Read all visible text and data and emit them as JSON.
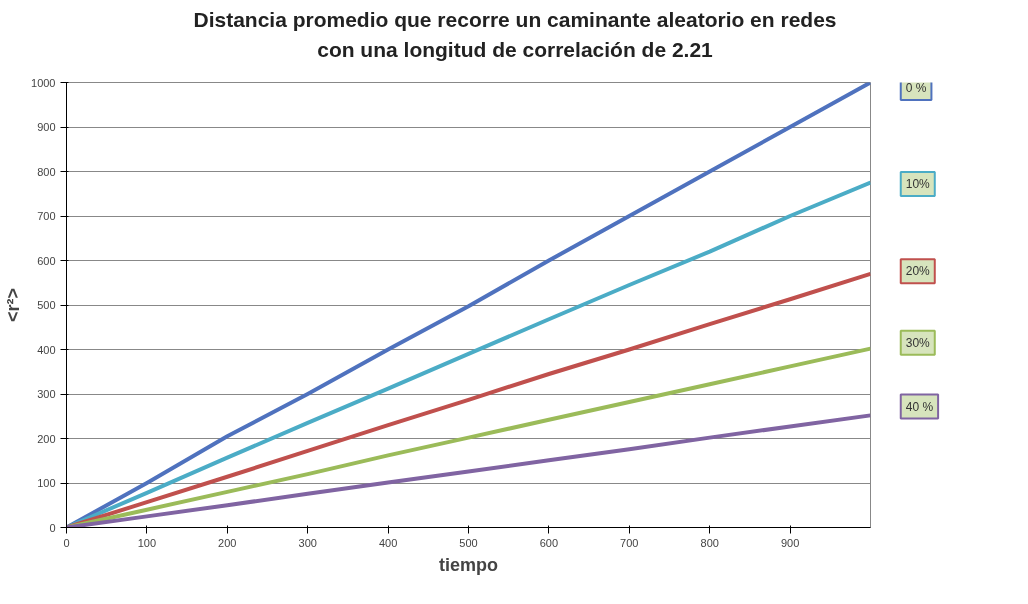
{
  "chart_data": {
    "type": "line",
    "title": "Distancia promedio que recorre un caminante aleatorio en redes\ncon una longitud de correlación de 2.21",
    "xlabel": "tiempo",
    "ylabel": "<r²>",
    "x": [
      0,
      100,
      200,
      300,
      400,
      500,
      600,
      700,
      800,
      900,
      1000
    ],
    "series": [
      {
        "name": "0 %",
        "color": "#4f72be",
        "values": [
          0,
          100,
          205,
          300,
          400,
          497,
          600,
          700,
          800,
          900,
          1000
        ]
      },
      {
        "name": "10%",
        "color": "#4bacc6",
        "values": [
          0,
          78,
          157,
          235,
          312,
          390,
          468,
          545,
          620,
          700,
          775
        ]
      },
      {
        "name": "20%",
        "color": "#c0504d",
        "values": [
          0,
          57,
          114,
          172,
          230,
          287,
          345,
          400,
          457,
          513,
          570
        ]
      },
      {
        "name": "30%",
        "color": "#9bbb59",
        "values": [
          0,
          40,
          80,
          120,
          162,
          202,
          242,
          282,
          322,
          362,
          402
        ]
      },
      {
        "name": "40 %",
        "color": "#8064a2",
        "values": [
          0,
          25,
          50,
          76,
          101,
          126,
          151,
          176,
          202,
          227,
          252
        ]
      }
    ],
    "xlim": [
      0,
      1000
    ],
    "ylim": [
      0,
      1000
    ],
    "xticks": [
      0,
      100,
      200,
      300,
      400,
      500,
      600,
      700,
      800,
      900
    ],
    "yticks": [
      0,
      100,
      200,
      300,
      400,
      500,
      600,
      700,
      800,
      900,
      1000
    ],
    "grid": "y",
    "legend": "right",
    "marker": "none",
    "line_style": "solid"
  }
}
